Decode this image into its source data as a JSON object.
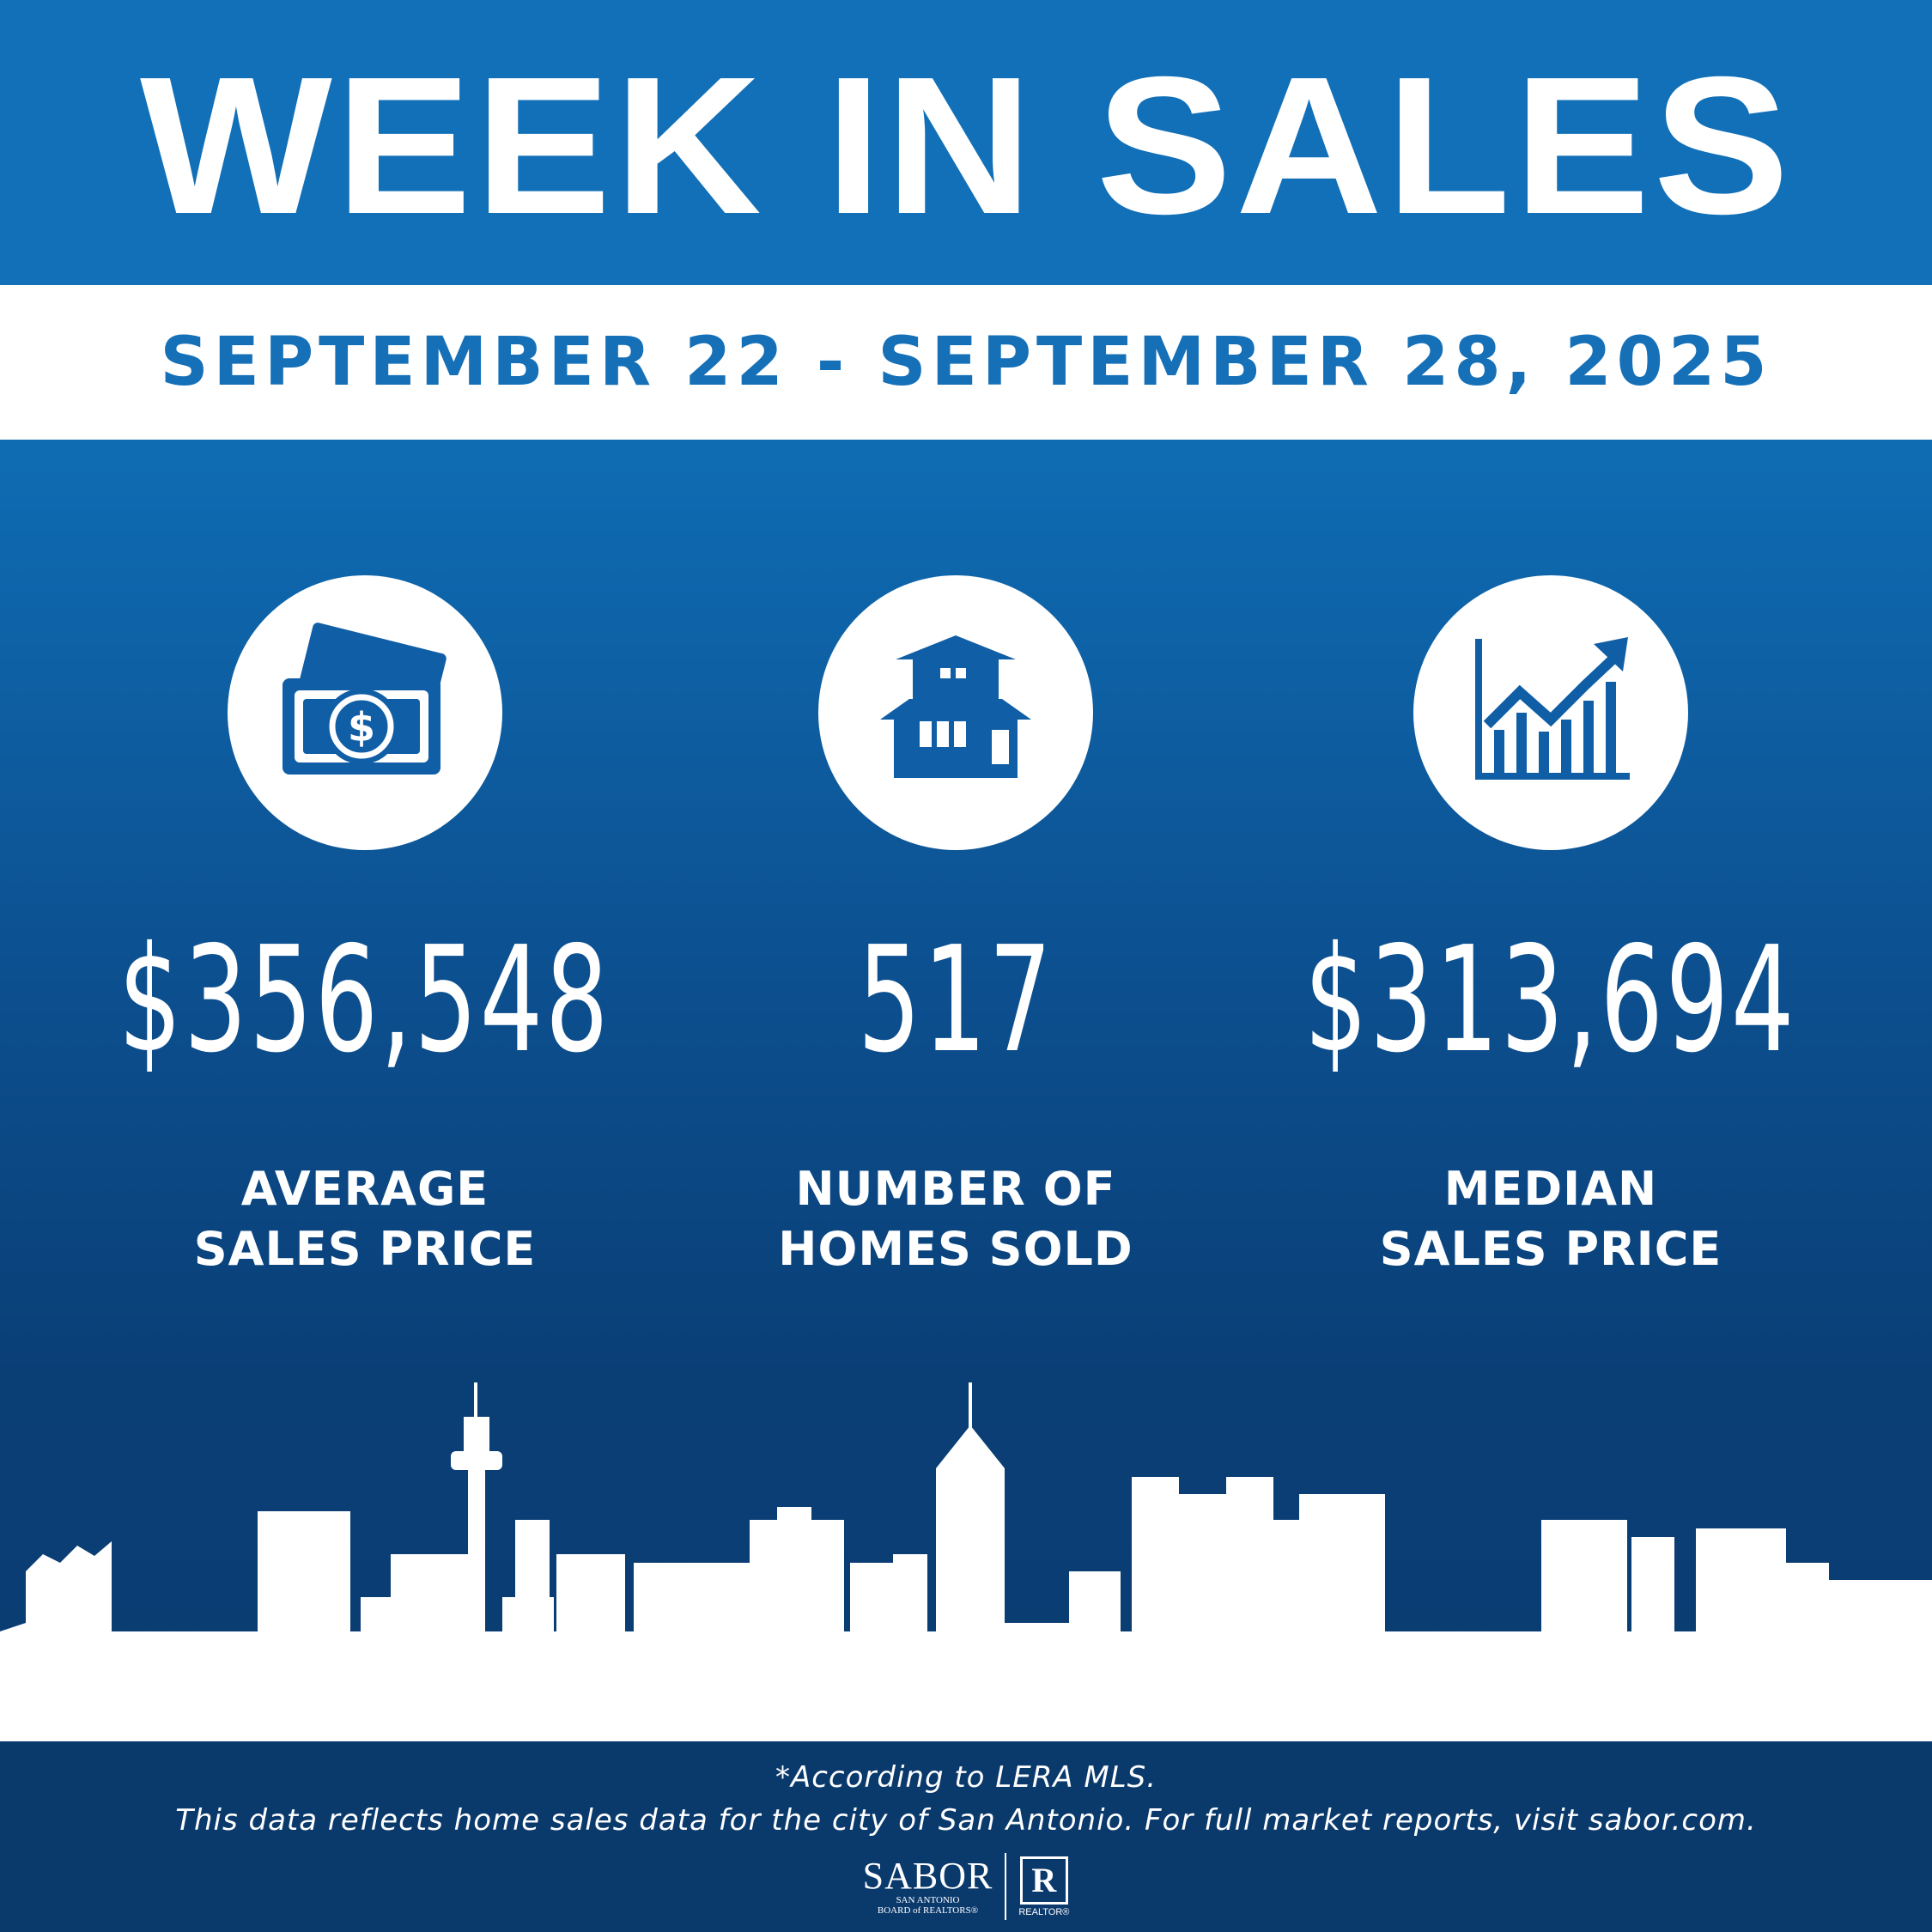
{
  "header": {
    "title": "WEEK IN SALES",
    "date_range": "SEPTEMBER 22 - SEPTEMBER 28, 2025"
  },
  "stats": [
    {
      "icon": "money-icon",
      "value": "$356,548",
      "label_line1": "AVERAGE",
      "label_line2": "SALES PRICE"
    },
    {
      "icon": "house-icon",
      "value": "517",
      "label_line1": "NUMBER OF",
      "label_line2": "HOMES SOLD"
    },
    {
      "icon": "growth-chart-icon",
      "value": "$313,694",
      "label_line1": "MEDIAN",
      "label_line2": "SALES PRICE"
    }
  ],
  "footer": {
    "note": "*According to LERA MLS.",
    "disclaimer": "This data reflects home sales data for the city of San Antonio. For full market reports, visit sabor.com.",
    "sabor_name": "SABOR",
    "sabor_sub_line1": "SAN ANTONIO",
    "sabor_sub_line2": "BOARD of REALTORS®",
    "realtor_mark": "R",
    "realtor_text": "REALTOR®"
  },
  "colors": {
    "brand_blue": "#1270b8",
    "dark_blue": "#0a396c",
    "white": "#ffffff"
  }
}
